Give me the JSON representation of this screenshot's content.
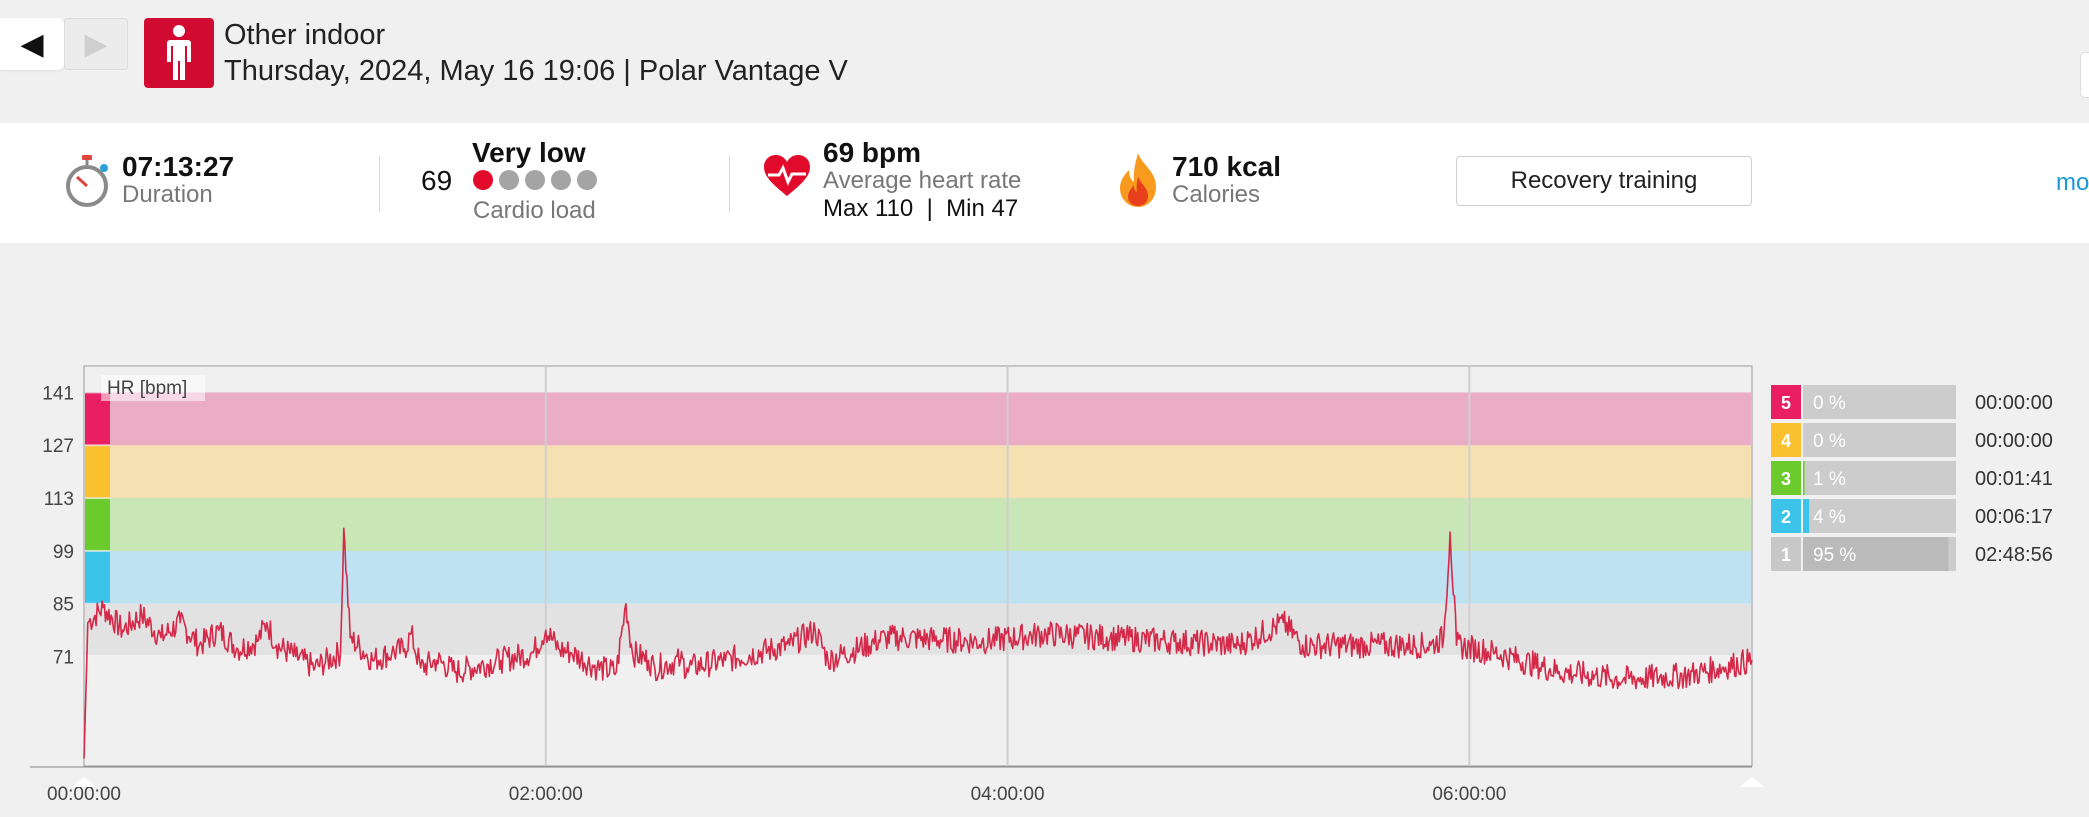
{
  "header": {
    "sport": "Other indoor",
    "session_info": "Thursday, 2024, May 16 19:06 | Polar Vantage V",
    "prev_icon": "◀",
    "next_icon": "▶"
  },
  "summary": {
    "duration_value": "07:13:27",
    "duration_label": "Duration",
    "cardio_load_value": "69",
    "cardio_load_level": "Very low",
    "cardio_load_label": "Cardio load",
    "cardio_load_dots_filled": 1,
    "cardio_load_dots_total": 5,
    "hr_value": "69 bpm",
    "hr_label": "Average heart rate",
    "hr_max_min": "Max 110  |  Min 47",
    "calories_value": "710 kcal",
    "calories_label": "Calories",
    "benefit_button": "Recovery training",
    "more_link": "mo"
  },
  "icons": {
    "sport": "person-standing-icon",
    "duration": "stopwatch-icon",
    "heart_rate": "heart-icon",
    "calories": "flame-icon"
  },
  "colors": {
    "accent": "#d10a32",
    "hr_line": "#d42a4a",
    "zone5": "#e91e63",
    "zone4": "#fbc02d",
    "zone3": "#6ccb2c",
    "zone2": "#3cc3ea",
    "zone1": "#c8c8c8"
  },
  "chart_data": {
    "type": "line",
    "series_label": "HR [bpm]",
    "y_ticks": [
      "141",
      "127",
      "113",
      "99",
      "85",
      "71"
    ],
    "x_ticks": [
      "00:00:00",
      "02:00:00",
      "04:00:00",
      "06:00:00"
    ],
    "ylim": [
      42,
      148
    ],
    "xlim_seconds": [
      0,
      26007
    ],
    "zone_bounds_bpm": [
      85,
      99,
      113,
      127,
      141
    ],
    "hr_trace": [
      [
        0,
        44
      ],
      [
        60,
        80
      ],
      [
        300,
        84
      ],
      [
        600,
        78
      ],
      [
        900,
        82
      ],
      [
        1200,
        76
      ],
      [
        1500,
        80
      ],
      [
        1800,
        74
      ],
      [
        2100,
        78
      ],
      [
        2400,
        73
      ],
      [
        2700,
        75
      ],
      [
        2850,
        80
      ],
      [
        3000,
        74
      ],
      [
        3300,
        71
      ],
      [
        3600,
        68
      ],
      [
        4000,
        72
      ],
      [
        4050,
        105
      ],
      [
        4150,
        76
      ],
      [
        4500,
        70
      ],
      [
        4800,
        72
      ],
      [
        5000,
        73
      ],
      [
        5100,
        77
      ],
      [
        5250,
        68
      ],
      [
        5500,
        70
      ],
      [
        5800,
        67
      ],
      [
        6500,
        70
      ],
      [
        7000,
        72
      ],
      [
        7200,
        78
      ],
      [
        7400,
        73
      ],
      [
        7600,
        72
      ],
      [
        8000,
        68
      ],
      [
        8300,
        67
      ],
      [
        8450,
        85
      ],
      [
        8550,
        72
      ],
      [
        8800,
        70
      ],
      [
        8900,
        68
      ],
      [
        9300,
        70
      ],
      [
        9400,
        68
      ],
      [
        10000,
        70
      ],
      [
        11000,
        74
      ],
      [
        11400,
        78
      ],
      [
        11600,
        70
      ],
      [
        12500,
        76
      ],
      [
        12800,
        76
      ],
      [
        14000,
        75
      ],
      [
        15000,
        77
      ],
      [
        16000,
        76
      ],
      [
        17000,
        75
      ],
      [
        18000,
        74
      ],
      [
        18700,
        80
      ],
      [
        19000,
        74
      ],
      [
        20000,
        74
      ],
      [
        21000,
        74
      ],
      [
        21200,
        76
      ],
      [
        21300,
        104
      ],
      [
        21400,
        74
      ],
      [
        22000,
        72
      ],
      [
        23000,
        67
      ],
      [
        24000,
        65
      ],
      [
        25000,
        66
      ],
      [
        26007,
        70
      ]
    ],
    "zones": [
      {
        "zone": "5",
        "percent": "0 %",
        "percent_value": 0,
        "time": "00:00:00"
      },
      {
        "zone": "4",
        "percent": "0 %",
        "percent_value": 0,
        "time": "00:00:00"
      },
      {
        "zone": "3",
        "percent": "1 %",
        "percent_value": 1,
        "time": "00:01:41"
      },
      {
        "zone": "2",
        "percent": "4 %",
        "percent_value": 4,
        "time": "00:06:17"
      },
      {
        "zone": "1",
        "percent": "95 %",
        "percent_value": 95,
        "time": "02:48:56"
      }
    ]
  }
}
